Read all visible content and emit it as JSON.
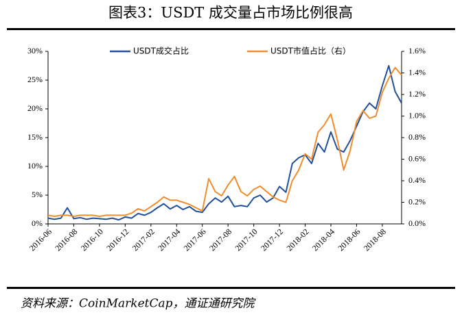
{
  "chart_data": {
    "type": "line",
    "title": "图表3：USDT 成交量占市场比例很高",
    "note": "资料来源：CoinMarketCap，通证通研究院",
    "categories": [
      "2016-06",
      null,
      null,
      null,
      "2016-08",
      null,
      null,
      null,
      "2016-10",
      null,
      null,
      null,
      "2016-12",
      null,
      null,
      null,
      "2017-02",
      null,
      null,
      null,
      "2017-04",
      null,
      null,
      null,
      "2017-06",
      null,
      null,
      null,
      "2017-08",
      null,
      null,
      null,
      "2017-10",
      null,
      null,
      null,
      "2017-12",
      null,
      null,
      null,
      "2018-02",
      null,
      null,
      null,
      "2018-04",
      null,
      null,
      null,
      "2018-06",
      null,
      null,
      null,
      "2018-08",
      null,
      null,
      null
    ],
    "series": [
      {
        "name": "USDT成交占比",
        "color": "#1f4e9c",
        "values": [
          1.0,
          0.8,
          1.0,
          2.8,
          0.9,
          1.1,
          0.8,
          1.0,
          0.9,
          0.8,
          1.0,
          0.7,
          1.2,
          1.0,
          1.8,
          1.5,
          2.0,
          2.8,
          3.5,
          2.6,
          3.2,
          2.5,
          3.0,
          2.2,
          2.0,
          3.5,
          4.5,
          3.8,
          4.8,
          3.0,
          3.2,
          3.0,
          4.5,
          5.0,
          3.8,
          4.5,
          6.5,
          5.5,
          10.5,
          11.5,
          12.0,
          10.5,
          14.0,
          12.5,
          16.0,
          13.0,
          12.5,
          14.5,
          17.0,
          19.5,
          21.0,
          20.0,
          24.0,
          27.5,
          23.0,
          21.0
        ]
      },
      {
        "name": "USDT市值占比（右）",
        "color": "#f08c2a",
        "axis": "y2",
        "values": [
          0.08,
          0.07,
          0.08,
          0.08,
          0.07,
          0.08,
          0.08,
          0.08,
          0.07,
          0.08,
          0.08,
          0.08,
          0.08,
          0.1,
          0.14,
          0.12,
          0.16,
          0.2,
          0.25,
          0.22,
          0.22,
          0.2,
          0.18,
          0.15,
          0.12,
          0.42,
          0.3,
          0.26,
          0.36,
          0.44,
          0.3,
          0.26,
          0.32,
          0.35,
          0.3,
          0.25,
          0.22,
          0.2,
          0.4,
          0.5,
          0.65,
          0.6,
          0.85,
          0.92,
          1.02,
          0.78,
          0.5,
          0.68,
          0.95,
          1.05,
          0.98,
          1.0,
          1.22,
          1.35,
          1.45,
          1.38
        ]
      }
    ],
    "ylim": [
      0,
      30
    ],
    "yticks": [
      {
        "value": 0,
        "label": "0%"
      },
      {
        "value": 5,
        "label": "5%"
      },
      {
        "value": 10,
        "label": "10%"
      },
      {
        "value": 15,
        "label": "15%"
      },
      {
        "value": 20,
        "label": "20%"
      },
      {
        "value": 25,
        "label": "25%"
      },
      {
        "value": 30,
        "label": "30%"
      }
    ],
    "y2lim": [
      0,
      1.6
    ],
    "y2ticks": [
      {
        "value": 0,
        "label": "0.0%"
      },
      {
        "value": 0.2,
        "label": "0.2%"
      },
      {
        "value": 0.4,
        "label": "0.4%"
      },
      {
        "value": 0.6,
        "label": "0.6%"
      },
      {
        "value": 0.8,
        "label": "0.8%"
      },
      {
        "value": 1.0,
        "label": "1.0%"
      },
      {
        "value": 1.2,
        "label": "1.2%"
      },
      {
        "value": 1.4,
        "label": "1.4%"
      },
      {
        "value": 1.6,
        "label": "1.6%"
      }
    ],
    "legend": "top"
  }
}
